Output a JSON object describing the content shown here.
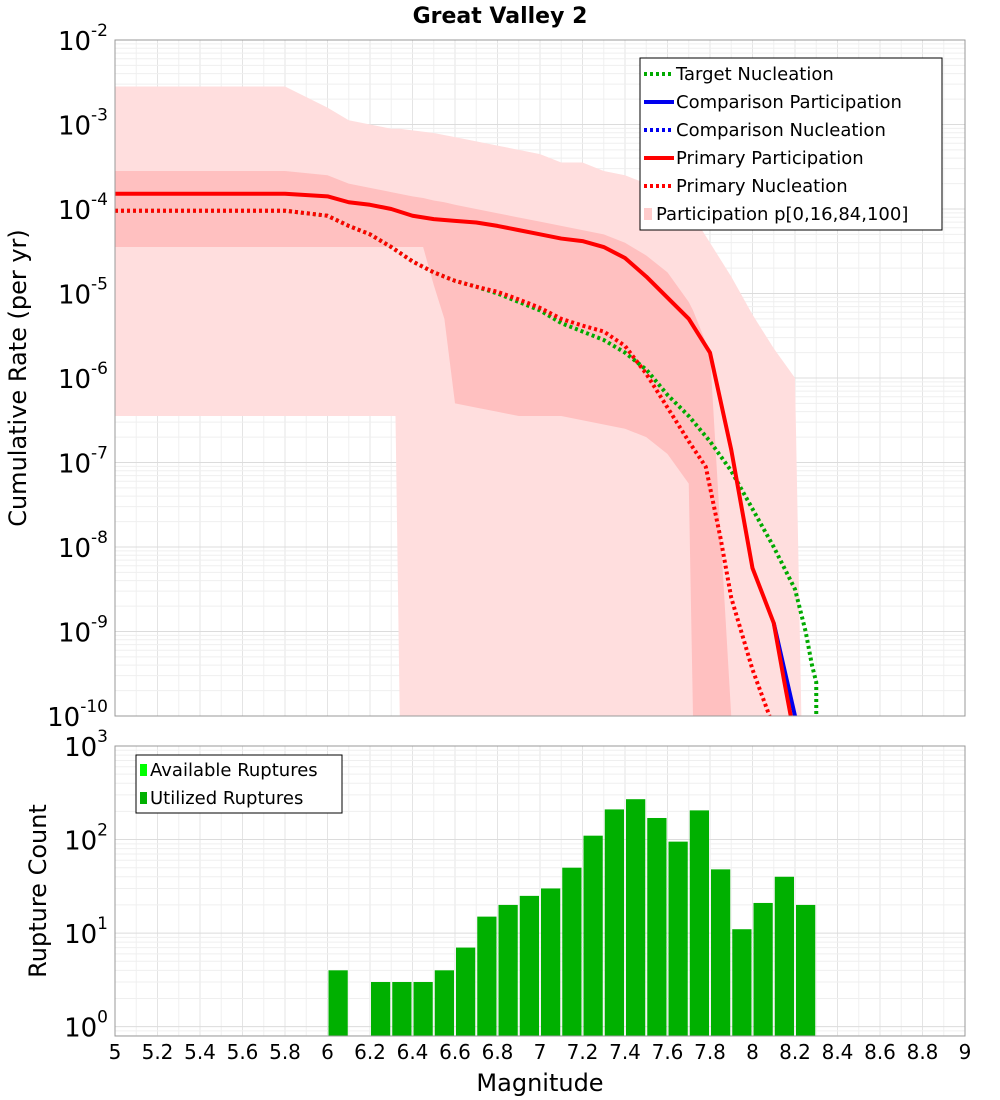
{
  "chart_data": [
    {
      "type": "line",
      "title": "Great Valley 2",
      "xlabel": "",
      "ylabel": "Cumulative Rate (per yr)",
      "xlim": [
        5,
        9
      ],
      "ylim_log10": [
        -10,
        -2
      ],
      "yscale": "log",
      "y_tick_base": "10",
      "y_tick_exponents": [
        "-10",
        "-9",
        "-8",
        "-7",
        "-6",
        "-5",
        "-4",
        "-3",
        "-2"
      ],
      "legend": {
        "position": "top-right",
        "entries": [
          {
            "label": "Target Nucleation",
            "color": "#00aa00",
            "style": "dotted"
          },
          {
            "label": "Comparison Participation",
            "color": "#0000ee",
            "style": "solid"
          },
          {
            "label": "Comparison Nucleation",
            "color": "#0000ee",
            "style": "dotted"
          },
          {
            "label": "Primary Participation",
            "color": "#ff0000",
            "style": "solid"
          },
          {
            "label": "Primary Nucleation",
            "color": "#ff0000",
            "style": "dotted"
          },
          {
            "label": "Participation p[0,16,84,100]",
            "color": "#ffcccc",
            "style": "fill"
          }
        ]
      },
      "bands": [
        {
          "name": "p0-p100",
          "color": "#ffdede",
          "x": [
            5.0,
            5.8,
            6.0,
            6.1,
            6.2,
            6.3,
            6.32,
            6.34,
            6.5,
            6.6,
            6.7,
            6.8,
            6.9,
            7.0,
            7.1,
            7.2,
            7.3,
            7.4,
            7.5,
            7.6,
            7.7,
            7.8,
            7.9,
            8.0,
            8.1,
            8.2,
            8.23
          ],
          "upper": [
            -2.55,
            -2.55,
            -2.8,
            -2.95,
            -3.0,
            -3.05,
            -3.05,
            -3.05,
            -3.1,
            -3.15,
            -3.2,
            -3.25,
            -3.3,
            -3.35,
            -3.45,
            -3.45,
            -3.55,
            -3.6,
            -3.7,
            -3.9,
            -4.0,
            -4.4,
            -4.8,
            -5.25,
            -5.65,
            -6.0,
            -10.0
          ],
          "lower": [
            -6.45,
            -6.45,
            -6.45,
            -6.45,
            -6.45,
            -6.45,
            -6.45,
            -10.0,
            -10.0,
            -10.0,
            -10.0,
            -10.0,
            -10.0,
            -10.0,
            -10.0,
            -10.0,
            -10.0,
            -10.0,
            -10.0,
            -10.0,
            -10.0,
            -10.0,
            -10.0,
            -10.0,
            -10.0,
            -10.0,
            -10.0
          ]
        },
        {
          "name": "p16-p84",
          "color": "#ffc0c0",
          "x": [
            5.0,
            5.8,
            6.0,
            6.1,
            6.2,
            6.3,
            6.4,
            6.45,
            6.5,
            6.55,
            6.6,
            6.7,
            6.8,
            6.9,
            7.0,
            7.1,
            7.2,
            7.3,
            7.4,
            7.5,
            7.6,
            7.7,
            7.72,
            7.8,
            7.9
          ],
          "upper": [
            -3.55,
            -3.55,
            -3.6,
            -3.7,
            -3.75,
            -3.8,
            -3.85,
            -3.87,
            -3.9,
            -3.92,
            -3.95,
            -4.0,
            -4.05,
            -4.1,
            -4.15,
            -4.2,
            -4.25,
            -4.3,
            -4.4,
            -4.55,
            -4.75,
            -5.1,
            -5.2,
            -5.7,
            -10.0
          ],
          "lower": [
            -4.45,
            -4.45,
            -4.45,
            -4.45,
            -4.45,
            -4.45,
            -4.45,
            -4.45,
            -4.9,
            -5.3,
            -6.3,
            -6.35,
            -6.4,
            -6.45,
            -6.45,
            -6.45,
            -6.5,
            -6.55,
            -6.6,
            -6.7,
            -6.9,
            -7.25,
            -10.0,
            -10.0,
            -10.0
          ]
        }
      ],
      "series": [
        {
          "name": "Target Nucleation",
          "color": "#00aa00",
          "style": "dotted",
          "x": [
            5.0,
            5.2,
            5.4,
            5.6,
            5.8,
            6.0,
            6.1,
            6.2,
            6.3,
            6.4,
            6.5,
            6.6,
            6.7,
            6.8,
            6.9,
            7.0,
            7.1,
            7.2,
            7.3,
            7.4,
            7.5,
            7.6,
            7.7,
            7.8,
            7.9,
            8.0,
            8.1,
            8.2,
            8.25,
            8.28,
            8.3,
            8.3
          ],
          "log10y": [
            -4.02,
            -4.02,
            -4.02,
            -4.02,
            -4.02,
            -4.08,
            -4.2,
            -4.3,
            -4.45,
            -4.62,
            -4.75,
            -4.85,
            -4.92,
            -5.0,
            -5.1,
            -5.2,
            -5.35,
            -5.45,
            -5.55,
            -5.7,
            -5.9,
            -6.2,
            -6.45,
            -6.75,
            -7.1,
            -7.55,
            -8.0,
            -8.5,
            -9.0,
            -9.4,
            -9.6,
            -10.0
          ]
        },
        {
          "name": "Comparison Participation",
          "color": "#0000ee",
          "style": "solid",
          "x": [
            8.1,
            8.15,
            8.2
          ],
          "log10y": [
            -8.9,
            -9.45,
            -10.0
          ]
        },
        {
          "name": "Primary Participation",
          "color": "#ff0000",
          "style": "solid",
          "x": [
            5.0,
            5.2,
            5.4,
            5.6,
            5.8,
            6.0,
            6.1,
            6.2,
            6.3,
            6.4,
            6.5,
            6.6,
            6.7,
            6.8,
            6.9,
            7.0,
            7.1,
            7.2,
            7.3,
            7.4,
            7.5,
            7.6,
            7.7,
            7.8,
            7.9,
            8.0,
            8.1,
            8.15,
            8.18
          ],
          "log10y": [
            -3.82,
            -3.82,
            -3.82,
            -3.82,
            -3.82,
            -3.85,
            -3.92,
            -3.95,
            -4.0,
            -4.08,
            -4.12,
            -4.14,
            -4.16,
            -4.2,
            -4.25,
            -4.3,
            -4.35,
            -4.38,
            -4.45,
            -4.58,
            -4.8,
            -5.05,
            -5.3,
            -5.7,
            -6.85,
            -8.25,
            -8.9,
            -9.6,
            -10.0
          ]
        },
        {
          "name": "Primary Nucleation",
          "color": "#ff0000",
          "style": "dotted",
          "x": [
            5.0,
            5.2,
            5.4,
            5.6,
            5.8,
            6.0,
            6.1,
            6.2,
            6.3,
            6.4,
            6.5,
            6.6,
            6.7,
            6.8,
            6.9,
            7.0,
            7.1,
            7.2,
            7.3,
            7.4,
            7.5,
            7.6,
            7.7,
            7.78,
            7.85,
            7.9,
            8.0,
            8.08
          ],
          "log10y": [
            -4.02,
            -4.02,
            -4.02,
            -4.02,
            -4.02,
            -4.08,
            -4.2,
            -4.3,
            -4.45,
            -4.62,
            -4.75,
            -4.85,
            -4.92,
            -4.98,
            -5.07,
            -5.17,
            -5.3,
            -5.38,
            -5.45,
            -5.62,
            -5.95,
            -6.35,
            -6.75,
            -7.05,
            -7.9,
            -8.6,
            -9.45,
            -10.0
          ]
        }
      ]
    },
    {
      "type": "bar",
      "title": "",
      "xlabel": "Magnitude",
      "ylabel": "Rupture Count",
      "xlim": [
        5,
        9
      ],
      "yscale": "log",
      "ylim_log10": [
        -0.1,
        3
      ],
      "y_tick_base": "10",
      "y_tick_exponents": [
        "0",
        "1",
        "2",
        "3"
      ],
      "x_ticks": [
        "5",
        "5.2",
        "5.4",
        "5.6",
        "5.8",
        "6",
        "6.2",
        "6.4",
        "6.6",
        "6.8",
        "7",
        "7.2",
        "7.4",
        "7.6",
        "7.8",
        "8",
        "8.2",
        "8.4",
        "8.6",
        "8.8",
        "9"
      ],
      "bin_width": 0.1,
      "legend": {
        "position": "top-left",
        "entries": [
          {
            "label": "Available Ruptures",
            "color": "#00ff00"
          },
          {
            "label": "Utilized Ruptures",
            "color": "#00b000"
          }
        ]
      },
      "series": [
        {
          "name": "Utilized Ruptures",
          "color": "#00b000",
          "x": [
            6.05,
            6.25,
            6.35,
            6.45,
            6.55,
            6.65,
            6.75,
            6.85,
            6.95,
            7.05,
            7.15,
            7.25,
            7.35,
            7.45,
            7.55,
            7.65,
            7.75,
            7.85,
            7.95,
            8.05,
            8.15,
            8.25
          ],
          "values": [
            4,
            3,
            3,
            3,
            4,
            7,
            15,
            20,
            25,
            30,
            50,
            110,
            210,
            270,
            170,
            95,
            205,
            48,
            11,
            21,
            40,
            20
          ]
        }
      ]
    }
  ]
}
